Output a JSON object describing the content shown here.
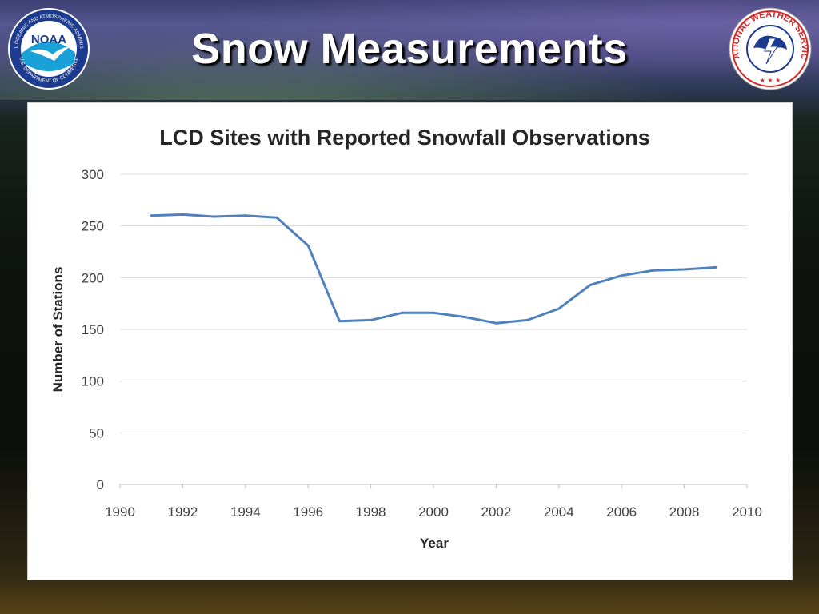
{
  "slide": {
    "title": "Snow Measurements",
    "left_logo": {
      "icon": "noaa-logo",
      "center_text": "NOAA",
      "ring_text": "NATIONAL OCEANIC AND ATMOSPHERIC ADMINISTRATION",
      "bottom_text": "U.S. DEPARTMENT OF COMMERCE"
    },
    "right_logo": {
      "icon": "nws-logo",
      "ring_text": "NATIONAL WEATHER SERVICE"
    }
  },
  "colors": {
    "series": "#4f81bd",
    "grid": "#d9d9d9",
    "title_text": "#ffffff"
  },
  "chart_data": {
    "type": "line",
    "title": "LCD Sites with Reported Snowfall Observations",
    "xlabel": "Year",
    "ylabel": "Number of Stations",
    "xlim": [
      1990,
      2010
    ],
    "ylim": [
      0,
      300
    ],
    "x_ticks": [
      1990,
      1992,
      1994,
      1996,
      1998,
      2000,
      2002,
      2004,
      2006,
      2008,
      2010
    ],
    "y_ticks": [
      0,
      50,
      100,
      150,
      200,
      250,
      300
    ],
    "grid": true,
    "legend": "none",
    "series": [
      {
        "x": [
          1991,
          1992,
          1993,
          1994,
          1995,
          1996,
          1997,
          1998,
          1999,
          2000,
          2001,
          2002,
          2003,
          2004,
          2005,
          2006,
          2007,
          2008,
          2009
        ],
        "values": [
          260,
          261,
          259,
          260,
          258,
          231,
          158,
          159,
          166,
          166,
          162,
          156,
          159,
          170,
          193,
          202,
          207,
          208,
          210
        ]
      }
    ]
  }
}
